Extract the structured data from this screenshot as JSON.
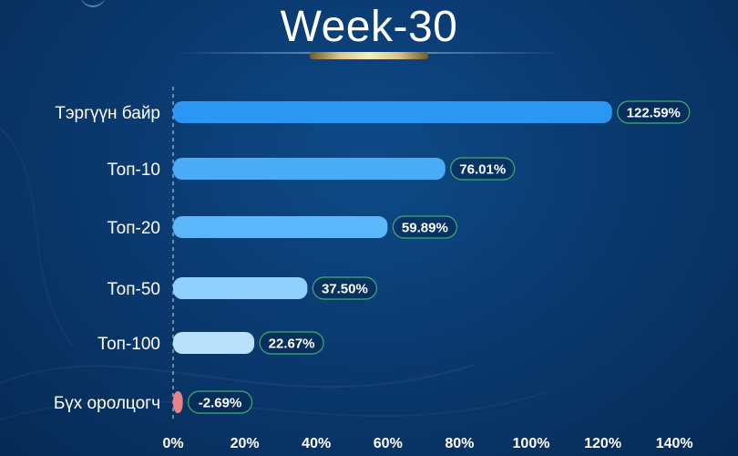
{
  "title": "Week-30",
  "chart_data": {
    "type": "bar",
    "orientation": "horizontal",
    "categories": [
      "Тэргүүн байр",
      "Топ-10",
      "Топ-20",
      "Топ-50",
      "Топ-100",
      "Бүх оролцогч"
    ],
    "values": [
      122.59,
      76.01,
      59.89,
      37.5,
      22.67,
      -2.69
    ],
    "value_labels": [
      "122.59%",
      "76.01%",
      "59.89%",
      "37.50%",
      "22.67%",
      "-2.69%"
    ],
    "x_ticks": [
      "0%",
      "20%",
      "40%",
      "60%",
      "80%",
      "100%",
      "120%",
      "140%"
    ],
    "xlim": [
      0,
      140
    ],
    "grid": false,
    "bar_colors": [
      "#2b97f3",
      "#4aabf7",
      "#5cb7fa",
      "#8fd0fd",
      "#b9e1fb",
      "#e88486"
    ],
    "label_border_color": "#3fae72"
  }
}
